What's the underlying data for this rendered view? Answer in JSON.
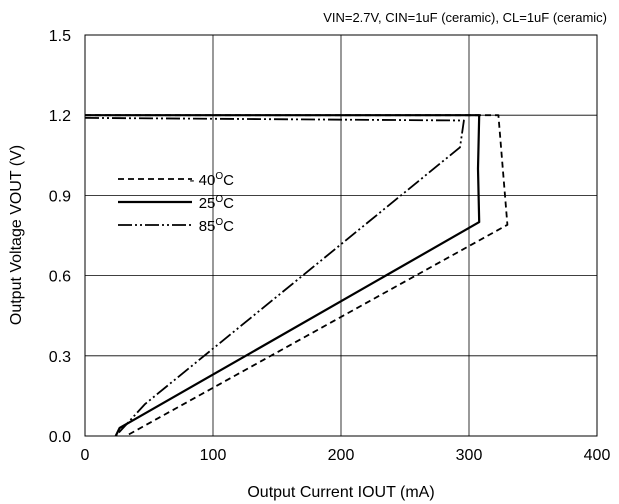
{
  "chart_data": {
    "type": "line",
    "conditions": "VIN=2.7V, CIN=1uF (ceramic), CL=1uF (ceramic)",
    "xlabel": "Output Current IOUT (mA)",
    "ylabel": "Output Voltage VOUT (V)",
    "xlim": [
      0,
      400
    ],
    "ylim": [
      0,
      1.5
    ],
    "xticks": [
      "0",
      "100",
      "200",
      "300",
      "400"
    ],
    "yticks": [
      "0.0",
      "0.3",
      "0.6",
      "0.9",
      "1.2",
      "1.5"
    ],
    "grid": true,
    "legend_position": "left",
    "series": [
      {
        "name_parts": [
          "- 40",
          "O",
          "C"
        ],
        "style": "dashed",
        "points": [
          [
            0,
            1.2
          ],
          [
            323,
            1.2
          ],
          [
            330,
            0.79
          ],
          [
            32,
            0.0
          ]
        ]
      },
      {
        "name_parts": [
          "25",
          "O",
          "C"
        ],
        "style": "solid",
        "points": [
          [
            0,
            1.2
          ],
          [
            308,
            1.2
          ],
          [
            307,
            1.0
          ],
          [
            308,
            0.8
          ],
          [
            27,
            0.03
          ],
          [
            24,
            0.0
          ]
        ]
      },
      {
        "name_parts": [
          "85",
          "O",
          "C"
        ],
        "style": "dash-dot-dot",
        "points": [
          [
            0,
            1.19
          ],
          [
            296,
            1.18
          ],
          [
            293,
            1.08
          ],
          [
            47,
            0.12
          ],
          [
            24,
            0.0
          ]
        ]
      }
    ]
  }
}
